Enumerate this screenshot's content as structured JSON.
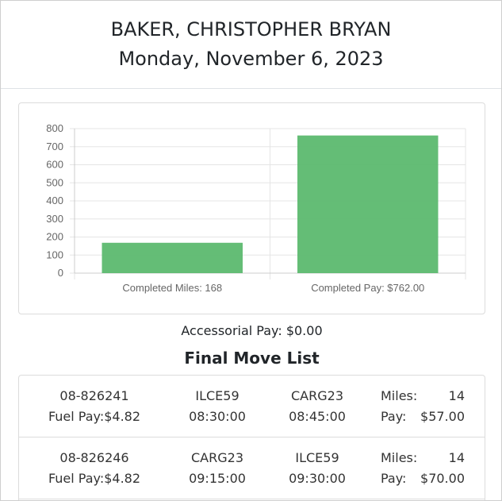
{
  "header": {
    "driver_name": "BAKER, CHRISTOPHER BRYAN",
    "date": "Monday, November 6, 2023"
  },
  "chart_data": {
    "type": "bar",
    "categories": [
      "Completed Miles: 168",
      "Completed Pay: $762.00"
    ],
    "values": [
      168,
      762
    ],
    "ylim": [
      0,
      800
    ],
    "yticks": [
      0,
      100,
      200,
      300,
      400,
      500,
      600,
      700,
      800
    ],
    "bar_color": "#5cb96f",
    "grid": true
  },
  "accessorial_pay": "Accessorial Pay: $0.00",
  "final_move_list": {
    "title": "Final Move List",
    "moves": [
      {
        "move_id": "08-826241",
        "fuel_pay": "Fuel Pay:$4.82",
        "origin": "ILCE59",
        "origin_time": "08:30:00",
        "destination": "CARG23",
        "destination_time": "08:45:00",
        "miles_label": "Miles:",
        "miles": "14",
        "pay_label": "Pay:",
        "pay": "$57.00"
      },
      {
        "move_id": "08-826246",
        "fuel_pay": "Fuel Pay:$4.82",
        "origin": "CARG23",
        "origin_time": "09:15:00",
        "destination": "ILCE59",
        "destination_time": "09:30:00",
        "miles_label": "Miles:",
        "miles": "14",
        "pay_label": "Pay:",
        "pay": "$70.00"
      }
    ]
  }
}
